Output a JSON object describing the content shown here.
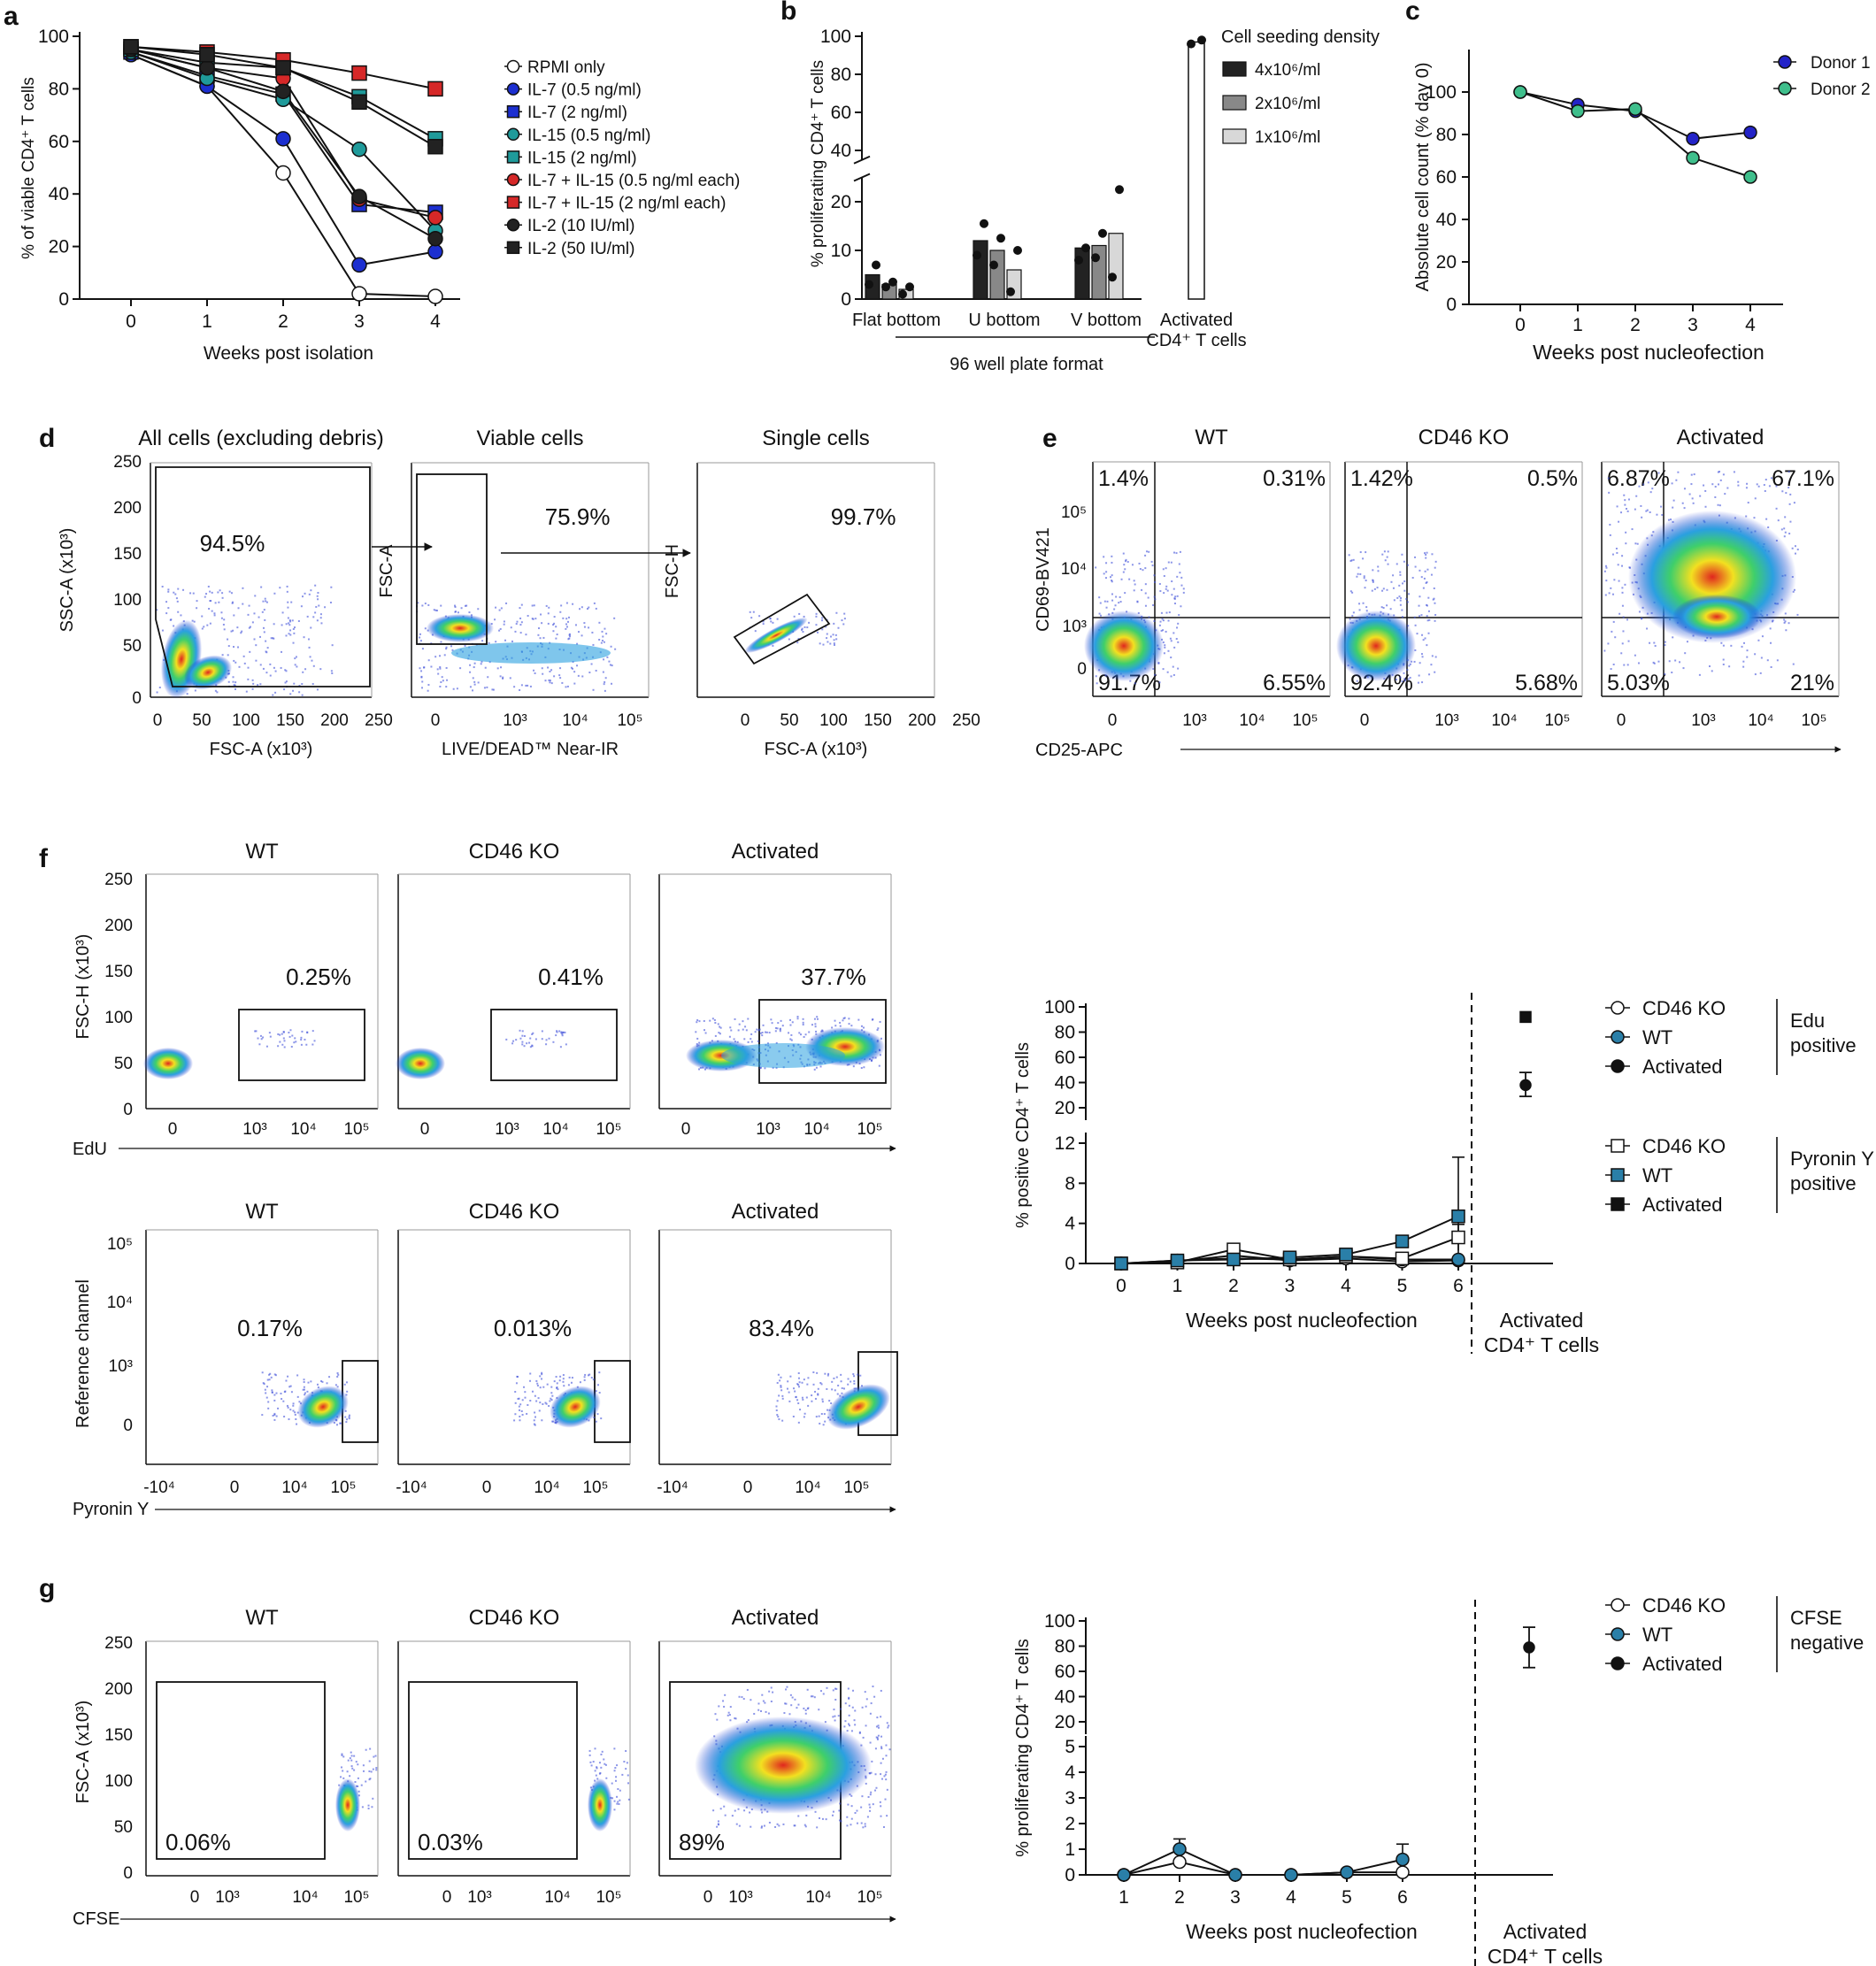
{
  "panel_letters": [
    "a",
    "b",
    "c",
    "d",
    "e",
    "f",
    "g"
  ],
  "colors": {
    "RPMI": "#ffffff",
    "IL7": "#1c2fd0",
    "IL15": "#1f9a9a",
    "IL7_15": "#d62828",
    "IL2": "#222222",
    "donor1": "#2323c8",
    "donor2": "#3fbf8c",
    "WT_fill": "#2a7fa8",
    "density_4": "#222222",
    "density_2": "#888888",
    "density_1": "#d8d8d8",
    "flow_gate": "#000000"
  },
  "chart_data": [
    {
      "id": "a",
      "type": "line",
      "ylabel": "% of viable CD4⁺ T cells",
      "xlabel": "Weeks post isolation",
      "x": [
        0,
        1,
        2,
        3,
        4
      ],
      "xticks": [
        "0",
        "1",
        "2",
        "3",
        "4"
      ],
      "yticks": [
        "0",
        "20",
        "40",
        "60",
        "80",
        "100"
      ],
      "ylim": [
        0,
        100
      ],
      "series": [
        {
          "name": "RPMI only",
          "color": "RPMI",
          "marker": "circle",
          "values": [
            93,
            81,
            48,
            2,
            1
          ]
        },
        {
          "name": "IL-7 (0.5 ng/ml)",
          "color": "IL7",
          "marker": "circle",
          "values": [
            93,
            81,
            61,
            13,
            18
          ]
        },
        {
          "name": "IL-7 (2 ng/ml)",
          "color": "IL7",
          "marker": "square",
          "values": [
            94,
            85,
            78,
            36,
            33
          ]
        },
        {
          "name": "IL-15 (0.5 ng/ml)",
          "color": "IL15",
          "marker": "circle",
          "values": [
            94,
            84,
            76,
            57,
            26
          ]
        },
        {
          "name": "IL-15 (2 ng/ml)",
          "color": "IL15",
          "marker": "square",
          "values": [
            95,
            90,
            88,
            77,
            61
          ]
        },
        {
          "name": "IL-7 + IL-15 (0.5 ng/ml each)",
          "color": "IL7_15",
          "marker": "circle",
          "values": [
            95,
            88,
            84,
            38,
            31
          ]
        },
        {
          "name": "IL-7 + IL-15 (2 ng/ml each)",
          "color": "IL7_15",
          "marker": "square",
          "values": [
            96,
            94,
            91,
            86,
            80
          ]
        },
        {
          "name": "IL-2 (10 IU/ml)",
          "color": "IL2",
          "marker": "circle",
          "values": [
            95,
            88,
            79,
            39,
            23
          ]
        },
        {
          "name": "IL-2 (50 IU/ml)",
          "color": "IL2",
          "marker": "square",
          "values": [
            96,
            93,
            88,
            75,
            58
          ]
        }
      ]
    },
    {
      "id": "b",
      "type": "bar",
      "ylabel": "% proliferating CD4⁺ T cells",
      "yticks_low": [
        "0",
        "10",
        "20"
      ],
      "yticks_high": [
        "40",
        "60",
        "80",
        "100"
      ],
      "categories": [
        "Flat bottom",
        "U bottom",
        "V bottom"
      ],
      "activated_label": [
        "Activated",
        "CD4⁺ T cells"
      ],
      "group_label": "96 well plate format",
      "legend_title": "Cell seeding density",
      "series": [
        {
          "name": "4x10⁶/ml",
          "color": "density_4",
          "values": [
            5,
            12,
            10.5
          ],
          "points": [
            [
              3,
              7
            ],
            [
              9,
              15.5
            ],
            [
              8,
              10.5
            ]
          ]
        },
        {
          "name": "2x10⁶/ml",
          "color": "density_2",
          "values": [
            3,
            10,
            11
          ],
          "points": [
            [
              2.5,
              3.5
            ],
            [
              7,
              12.5
            ],
            [
              8.5,
              13.5
            ]
          ]
        },
        {
          "name": "1x10⁶/ml",
          "color": "density_1",
          "values": [
            2,
            6,
            13.5
          ],
          "points": [
            [
              1,
              2.5
            ],
            [
              1.5,
              10
            ],
            [
              4.5,
              22.5
            ]
          ]
        }
      ],
      "activated_value": 97,
      "activated_points": [
        96,
        98
      ]
    },
    {
      "id": "c",
      "type": "line",
      "ylabel": "Absolute cell count (% day 0)",
      "xlabel": "Weeks post nucleofection",
      "x": [
        0,
        1,
        2,
        3,
        4
      ],
      "xticks": [
        "0",
        "1",
        "2",
        "3",
        "4"
      ],
      "yticks": [
        "0",
        "20",
        "40",
        "60",
        "80",
        "100"
      ],
      "ylim": [
        0,
        120
      ],
      "series": [
        {
          "name": "Donor 1",
          "color": "donor1",
          "values": [
            100,
            94,
            91,
            78,
            81
          ]
        },
        {
          "name": "Donor 2",
          "color": "donor2",
          "values": [
            100,
            91,
            92,
            69,
            60
          ]
        }
      ]
    },
    {
      "id": "f_right",
      "type": "line",
      "ylabel": "% positive CD4⁺ T cells",
      "xlabel": "Weeks post nucleofection",
      "x": [
        0,
        1,
        2,
        3,
        4,
        5,
        6
      ],
      "xticks": [
        "0",
        "1",
        "2",
        "3",
        "4",
        "5",
        "6"
      ],
      "yticks_low": [
        "0",
        "4",
        "8",
        "12"
      ],
      "yticks_high": [
        "20",
        "40",
        "60",
        "80",
        "100"
      ],
      "activated_label": [
        "Activated",
        "CD4⁺ T cells"
      ],
      "series": [
        {
          "name": "CD46 KO",
          "group": "Edu positive",
          "marker": "circle-open",
          "values": [
            0,
            0.2,
            0.8,
            0.3,
            0.5,
            0.2,
            0.3
          ]
        },
        {
          "name": "WT",
          "group": "Edu positive",
          "marker": "circle-wt",
          "values": [
            0,
            0.3,
            0.5,
            0.4,
            0.7,
            0.4,
            0.4
          ]
        },
        {
          "name": "Activated",
          "group": "Edu positive",
          "marker": "circle-black",
          "value": 38,
          "err": [
            29,
            48
          ]
        },
        {
          "name": "CD46 KO",
          "group": "Pyronin Y positive",
          "marker": "square-open",
          "values": [
            0,
            0.1,
            1.4,
            0.4,
            0.7,
            0.5,
            2.6
          ],
          "err_last": [
            1.3,
            3.9
          ]
        },
        {
          "name": "WT",
          "group": "Pyronin Y positive",
          "marker": "square-wt",
          "values": [
            0,
            0.3,
            0.4,
            0.6,
            0.9,
            2.2,
            4.7
          ],
          "err_last": [
            0,
            10.6
          ]
        },
        {
          "name": "Activated",
          "group": "Pyronin Y positive",
          "marker": "square-black",
          "value": 92
        }
      ],
      "legend_groups": [
        {
          "label": [
            "Edu",
            "positive"
          ],
          "items": [
            "CD46 KO",
            "WT",
            "Activated"
          ]
        },
        {
          "label": [
            "Pyronin Y",
            "positive"
          ],
          "items": [
            "CD46 KO",
            "WT",
            "Activated"
          ]
        }
      ]
    },
    {
      "id": "g_right",
      "type": "line",
      "ylabel": "% proliferating CD4⁺ T cells",
      "xlabel": "Weeks post nucleofection",
      "x": [
        1,
        2,
        3,
        4,
        5,
        6
      ],
      "xticks": [
        "1",
        "2",
        "3",
        "4",
        "5",
        "6"
      ],
      "yticks_low": [
        "0",
        "1",
        "2",
        "3",
        "4",
        "5"
      ],
      "yticks_high": [
        "20",
        "40",
        "60",
        "80",
        "100"
      ],
      "activated_label": [
        "Activated",
        "CD4⁺ T cells"
      ],
      "series": [
        {
          "name": "CD46 KO",
          "marker": "circle-open",
          "values": [
            0,
            0.5,
            0,
            0,
            0.1,
            0.1
          ]
        },
        {
          "name": "WT",
          "marker": "circle-wt",
          "values": [
            0,
            1,
            0,
            0,
            0.1,
            0.6
          ],
          "err": [
            null,
            [
              0.6,
              1.4
            ],
            null,
            null,
            null,
            [
              0.05,
              1.2
            ]
          ]
        },
        {
          "name": "Activated",
          "marker": "circle-black",
          "value": 79,
          "err": [
            63,
            95
          ]
        }
      ],
      "legend_groups": [
        {
          "label": [
            "CFSE",
            "negative"
          ],
          "items": [
            "CD46 KO",
            "WT",
            "Activated"
          ]
        }
      ]
    }
  ],
  "flow": {
    "d": {
      "titles": [
        "All cells (excluding debris)",
        "Viable cells",
        "Single cells"
      ],
      "pcts": [
        "94.5%",
        "75.9%",
        "99.7%"
      ],
      "ylabels": [
        "SSC-A (x10³)",
        "FSC-A",
        "FSC-H"
      ],
      "xlabels": [
        "FSC-A (x10³)",
        "LIVE/DEAD™ Near-IR",
        "FSC-A (x10³)"
      ],
      "lin_ticks": [
        "0",
        "50",
        "100",
        "150",
        "200",
        "250"
      ],
      "log_ticks": [
        "0",
        "10³",
        "10⁴",
        "10⁵"
      ]
    },
    "e": {
      "titles": [
        "WT",
        "CD46 KO",
        "Activated"
      ],
      "quadrants": [
        [
          "1.4%",
          "0.31%",
          "91.7%",
          "6.55%"
        ],
        [
          "1.42%",
          "0.5%",
          "92.4%",
          "5.68%"
        ],
        [
          "6.87%",
          "67.1%",
          "5.03%",
          "21%"
        ]
      ],
      "ylabel": "CD69-BV421",
      "xlabel": "CD25-APC",
      "log_ticks": [
        "0",
        "10³",
        "10⁴",
        "10⁵"
      ]
    },
    "f_edu": {
      "titles": [
        "WT",
        "CD46 KO",
        "Activated"
      ],
      "pcts": [
        "0.25%",
        "0.41%",
        "37.7%"
      ],
      "ylabel": "FSC-H (x10³)",
      "xlabel": "EdU",
      "lin_ticks": [
        "0",
        "50",
        "100",
        "150",
        "200",
        "250"
      ],
      "log_ticks": [
        "0",
        "10³",
        "10⁴",
        "10⁵"
      ]
    },
    "f_pyr": {
      "titles": [
        "WT",
        "CD46 KO",
        "Activated"
      ],
      "pcts": [
        "0.17%",
        "0.013%",
        "83.4%"
      ],
      "ylabel": "Reference channel",
      "xlabel": "Pyronin Y",
      "x_ticks": [
        "-10⁴",
        "0",
        "10⁴",
        "10⁵"
      ],
      "y_ticks": [
        "0",
        "10³",
        "10⁴",
        "10⁵"
      ]
    },
    "g": {
      "titles": [
        "WT",
        "CD46 KO",
        "Activated"
      ],
      "pcts": [
        "0.06%",
        "0.03%",
        "89%"
      ],
      "ylabel": "FSC-A (x10³)",
      "xlabel": "CFSE",
      "lin_ticks": [
        "0",
        "50",
        "100",
        "150",
        "200",
        "250"
      ],
      "log_ticks": [
        "0",
        "10³",
        "10⁴",
        "10⁵"
      ]
    }
  }
}
